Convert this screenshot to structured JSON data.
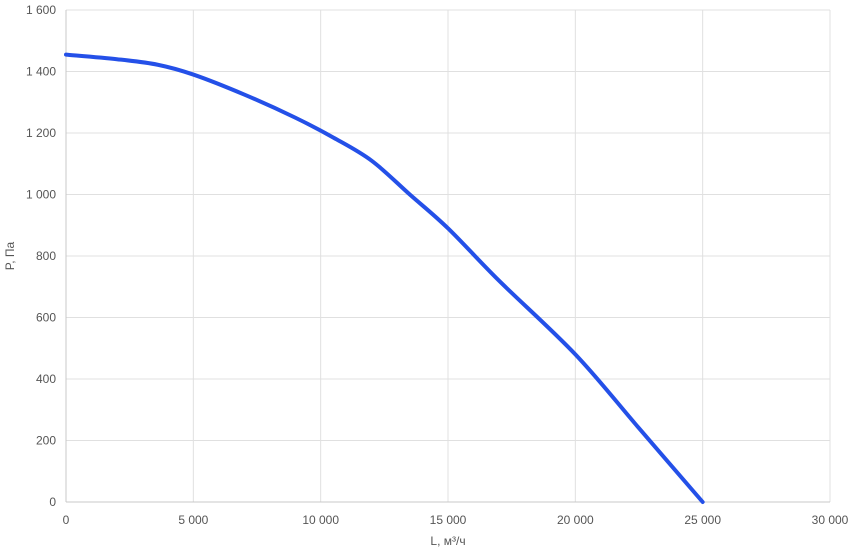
{
  "chart_data": {
    "type": "line",
    "title": "",
    "xlabel": "L, м³/ч",
    "ylabel": "P, Па",
    "xlim": [
      0,
      30000
    ],
    "ylim": [
      0,
      1600
    ],
    "x_ticks": [
      0,
      5000,
      10000,
      15000,
      20000,
      25000,
      30000
    ],
    "x_tick_labels": [
      "0",
      "5 000",
      "10 000",
      "15 000",
      "20 000",
      "25 000",
      "30 000"
    ],
    "y_ticks": [
      0,
      200,
      400,
      600,
      800,
      1000,
      1200,
      1400,
      1600
    ],
    "y_tick_labels": [
      "0",
      "200",
      "400",
      "600",
      "800",
      "1 000",
      "1 200",
      "1 400",
      "1 600"
    ],
    "grid": true,
    "legend": "none",
    "series": [
      {
        "color": "#2450e8",
        "x": [
          0,
          2000,
          3600,
          5000,
          7000,
          9000,
          10500,
          12000,
          13500,
          15000,
          17000,
          20000,
          22500,
          25000
        ],
        "y": [
          1455,
          1440,
          1422,
          1390,
          1325,
          1250,
          1185,
          1110,
          1000,
          890,
          720,
          480,
          240,
          0
        ]
      }
    ]
  }
}
